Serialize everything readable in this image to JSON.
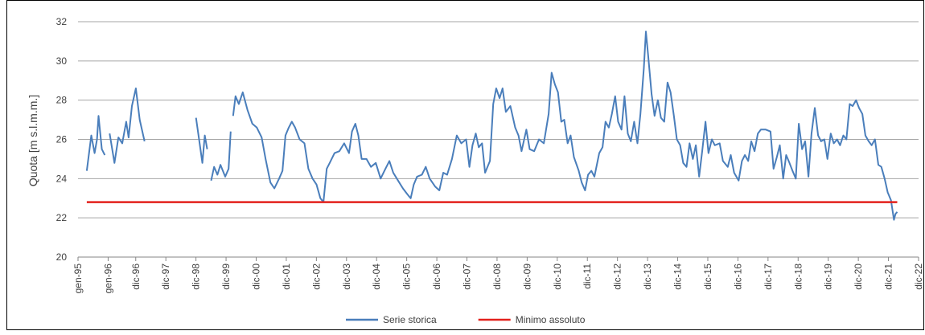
{
  "chart_data": {
    "type": "line",
    "y_label": "Quota [m s.l.m.m.]",
    "ylim": [
      20,
      32
    ],
    "yticks": [
      20,
      22,
      24,
      26,
      28,
      30,
      32
    ],
    "grid": true,
    "xlim": [
      1995.0,
      2022.917
    ],
    "xticks": [
      {
        "value": 1995.0,
        "label": "gen-95"
      },
      {
        "value": 1996.0,
        "label": "gen-96"
      },
      {
        "value": 1996.917,
        "label": "dic-96"
      },
      {
        "value": 1997.917,
        "label": "dic-97"
      },
      {
        "value": 1998.917,
        "label": "dic-98"
      },
      {
        "value": 1999.917,
        "label": "dic-99"
      },
      {
        "value": 2000.917,
        "label": "dic-00"
      },
      {
        "value": 2001.917,
        "label": "dic-01"
      },
      {
        "value": 2002.917,
        "label": "dic-02"
      },
      {
        "value": 2003.917,
        "label": "dic-03"
      },
      {
        "value": 2004.917,
        "label": "dic-04"
      },
      {
        "value": 2005.917,
        "label": "dic-05"
      },
      {
        "value": 2006.917,
        "label": "dic-06"
      },
      {
        "value": 2007.917,
        "label": "dic-07"
      },
      {
        "value": 2008.917,
        "label": "dic-08"
      },
      {
        "value": 2009.917,
        "label": "dic-09"
      },
      {
        "value": 2010.917,
        "label": "dic-10"
      },
      {
        "value": 2011.917,
        "label": "dic-11"
      },
      {
        "value": 2012.917,
        "label": "dic-12"
      },
      {
        "value": 2013.917,
        "label": "dic-13"
      },
      {
        "value": 2014.917,
        "label": "dic-14"
      },
      {
        "value": 2015.917,
        "label": "dic-15"
      },
      {
        "value": 2016.917,
        "label": "dic-16"
      },
      {
        "value": 2017.917,
        "label": "dic-17"
      },
      {
        "value": 2018.917,
        "label": "dic-18"
      },
      {
        "value": 2019.917,
        "label": "dic-19"
      },
      {
        "value": 2020.917,
        "label": "dic-20"
      },
      {
        "value": 2021.917,
        "label": "dic-21"
      },
      {
        "value": 2022.917,
        "label": "dic-22"
      }
    ],
    "legend": "bottom",
    "series": [
      {
        "name": "Serie storica",
        "color": "#4a7ebb",
        "x": [
          1995.29,
          1995.44,
          1995.55,
          1995.63,
          1995.68,
          1995.79,
          1995.89,
          1995.97,
          1996.05,
          1996.21,
          1996.34,
          1996.47,
          1996.6,
          1996.68,
          1996.79,
          1996.92,
          1997.05,
          1997.21,
          1998.0,
          1998.92,
          1999.02,
          1999.13,
          1999.21,
          1999.29,
          1999.35,
          1999.42,
          1999.52,
          1999.63,
          1999.73,
          1999.89,
          2000.0,
          2000.07,
          2000.11,
          2000.15,
          2000.23,
          2000.34,
          2000.47,
          2000.63,
          2000.79,
          2000.94,
          2001.1,
          2001.23,
          2001.39,
          2001.52,
          2001.68,
          2001.79,
          2001.89,
          2002.0,
          2002.1,
          2002.21,
          2002.36,
          2002.52,
          2002.65,
          2002.79,
          2002.92,
          2003.05,
          2003.15,
          2003.26,
          2003.36,
          2003.52,
          2003.68,
          2003.84,
          2004.0,
          2004.1,
          2004.21,
          2004.31,
          2004.42,
          2004.58,
          2004.73,
          2004.89,
          2005.05,
          2005.21,
          2005.34,
          2005.47,
          2005.63,
          2005.79,
          2005.94,
          2006.05,
          2006.15,
          2006.26,
          2006.42,
          2006.55,
          2006.68,
          2006.86,
          2007.0,
          2007.13,
          2007.26,
          2007.42,
          2007.58,
          2007.73,
          2007.89,
          2008.0,
          2008.1,
          2008.21,
          2008.31,
          2008.42,
          2008.52,
          2008.68,
          2008.79,
          2008.89,
          2009.0,
          2009.1,
          2009.21,
          2009.36,
          2009.52,
          2009.63,
          2009.73,
          2009.89,
          2010.0,
          2010.15,
          2010.31,
          2010.47,
          2010.63,
          2010.73,
          2010.84,
          2010.94,
          2011.05,
          2011.15,
          2011.26,
          2011.36,
          2011.47,
          2011.63,
          2011.73,
          2011.84,
          2011.94,
          2012.05,
          2012.15,
          2012.31,
          2012.42,
          2012.52,
          2012.63,
          2012.73,
          2012.84,
          2012.94,
          2013.05,
          2013.15,
          2013.26,
          2013.36,
          2013.47,
          2013.58,
          2013.68,
          2013.79,
          2013.86,
          2013.94,
          2014.05,
          2014.15,
          2014.26,
          2014.36,
          2014.47,
          2014.58,
          2014.68,
          2014.79,
          2014.89,
          2015.0,
          2015.1,
          2015.21,
          2015.31,
          2015.42,
          2015.52,
          2015.63,
          2015.73,
          2015.84,
          2015.94,
          2016.05,
          2016.15,
          2016.31,
          2016.42,
          2016.58,
          2016.68,
          2016.79,
          2016.94,
          2017.05,
          2017.15,
          2017.26,
          2017.36,
          2017.47,
          2017.58,
          2017.68,
          2017.84,
          2018.0,
          2018.1,
          2018.21,
          2018.31,
          2018.42,
          2018.52,
          2018.63,
          2018.73,
          2018.84,
          2018.94,
          2019.05,
          2019.15,
          2019.26,
          2019.36,
          2019.47,
          2019.58,
          2019.68,
          2019.79,
          2019.89,
          2020.0,
          2020.1,
          2020.21,
          2020.31,
          2020.42,
          2020.52,
          2020.63,
          2020.73,
          2020.84,
          2020.94,
          2021.05,
          2021.15,
          2021.26,
          2021.36,
          2021.47,
          2021.58,
          2021.68,
          2021.79,
          2021.89,
          2022.0,
          2022.1,
          2022.15,
          2022.21
        ],
        "values": [
          24.4,
          26.2,
          25.3,
          26.0,
          27.2,
          25.5,
          25.2,
          null,
          26.3,
          24.8,
          26.1,
          25.8,
          26.9,
          26.1,
          27.7,
          28.6,
          27.0,
          25.9,
          null,
          27.1,
          26.0,
          24.8,
          26.2,
          25.5,
          null,
          23.9,
          24.6,
          24.2,
          24.7,
          24.1,
          24.5,
          26.4,
          null,
          27.2,
          28.2,
          27.8,
          28.4,
          27.5,
          26.8,
          26.6,
          26.1,
          25.0,
          23.8,
          23.5,
          24.0,
          24.4,
          26.2,
          26.6,
          26.9,
          26.6,
          26.0,
          25.8,
          24.5,
          24.0,
          23.7,
          23.0,
          22.8,
          24.5,
          24.8,
          25.3,
          25.4,
          25.8,
          25.3,
          26.4,
          26.8,
          26.2,
          25.0,
          25.0,
          24.6,
          24.8,
          24.0,
          24.5,
          24.9,
          24.3,
          23.9,
          23.5,
          23.2,
          23.0,
          23.7,
          24.1,
          24.2,
          24.6,
          24.0,
          23.6,
          23.4,
          24.3,
          24.2,
          25.0,
          26.2,
          25.8,
          26.0,
          24.6,
          25.7,
          26.3,
          25.6,
          25.8,
          24.3,
          24.9,
          27.8,
          28.6,
          28.1,
          28.6,
          27.4,
          27.7,
          26.6,
          26.2,
          25.4,
          26.5,
          25.5,
          25.4,
          26.0,
          25.8,
          27.3,
          29.4,
          28.8,
          28.4,
          26.9,
          27.0,
          25.8,
          26.2,
          25.1,
          24.4,
          23.8,
          23.4,
          24.2,
          24.4,
          24.1,
          25.3,
          25.6,
          26.9,
          26.6,
          27.3,
          28.2,
          26.9,
          26.5,
          28.2,
          26.3,
          25.9,
          26.9,
          25.8,
          27.3,
          29.6,
          31.5,
          30.2,
          28.3,
          27.2,
          28.0,
          27.1,
          26.9,
          28.9,
          28.4,
          27.2,
          26.0,
          25.7,
          24.8,
          24.6,
          25.8,
          25.0,
          25.7,
          24.1,
          25.4,
          26.9,
          25.3,
          26.0,
          25.7,
          25.8,
          24.9,
          24.6,
          25.2,
          24.3,
          23.9,
          24.9,
          25.2,
          24.9,
          25.9,
          25.4,
          26.3,
          26.5,
          26.5,
          26.4,
          24.5,
          25.1,
          25.7,
          24.0,
          25.2,
          24.8,
          24.4,
          24.0,
          26.8,
          25.5,
          25.9,
          24.1,
          26.3,
          27.6,
          26.2,
          25.9,
          26.0,
          25.0,
          26.3,
          25.8,
          26.0,
          25.7,
          26.2,
          26.0,
          27.8,
          27.7,
          28.0,
          27.6,
          27.3,
          26.2,
          25.9,
          25.7,
          26.0,
          24.7,
          24.6,
          24.0,
          23.3,
          22.9,
          21.9,
          22.2,
          22.3
        ]
      },
      {
        "name": "Minimo assoluto",
        "color": "#e3211c",
        "x": [
          1995.29,
          2022.21
        ],
        "values": [
          22.8,
          22.8
        ]
      }
    ]
  }
}
